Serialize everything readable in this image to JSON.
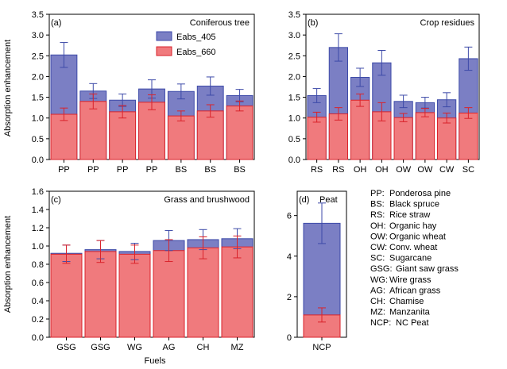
{
  "colors": {
    "eabs405_fill": "#7b7fc4",
    "eabs405_stroke": "#3d4aa8",
    "eabs660_fill": "#f07a7d",
    "eabs660_stroke": "#d9232b"
  },
  "ylabel": "Absorption enhancement",
  "xlabel": "Fuels",
  "legend": {
    "items": [
      "Eabs_405",
      "Eabs_660"
    ]
  },
  "abbreviations": [
    {
      "code": "PP:",
      "name": "Ponderosa pine"
    },
    {
      "code": "BS:",
      "name": "Black spruce"
    },
    {
      "code": "RS:",
      "name": "Rice straw"
    },
    {
      "code": "OH:",
      "name": "Organic hay"
    },
    {
      "code": "OW:",
      "name": "Organic wheat"
    },
    {
      "code": "CW:",
      "name": "Conv. wheat"
    },
    {
      "code": "SC:",
      "name": "Sugarcane"
    },
    {
      "code": "GSG:",
      "name": "Giant saw grass"
    },
    {
      "code": "WG:",
      "name": "Wire grass"
    },
    {
      "code": "AG:",
      "name": "African grass"
    },
    {
      "code": "CH:",
      "name": "Chamise"
    },
    {
      "code": "MZ:",
      "name": "Manzanita"
    },
    {
      "code": "NCP:",
      "name": "NC Peat"
    }
  ],
  "chart_data": [
    {
      "type": "bar",
      "panel": "(a)",
      "title": "Coniferous tree",
      "categories": [
        "PP",
        "PP",
        "PP",
        "PP",
        "BS",
        "BS",
        "BS"
      ],
      "ylim": [
        0,
        3.5
      ],
      "yticks": [
        0.0,
        0.5,
        1.0,
        1.5,
        2.0,
        2.5,
        3.0,
        3.5
      ],
      "ytick_labels": [
        "0.0",
        "0.5",
        "1.0",
        "1.5",
        "2.0",
        "2.5",
        "3.0",
        "3.5"
      ],
      "series": [
        {
          "name": "Eabs_405",
          "values": [
            2.52,
            1.65,
            1.43,
            1.7,
            1.64,
            1.77,
            1.54
          ],
          "errors": [
            0.3,
            0.18,
            0.15,
            0.22,
            0.18,
            0.22,
            0.15
          ]
        },
        {
          "name": "Eabs_660",
          "values": [
            1.09,
            1.4,
            1.15,
            1.38,
            1.05,
            1.17,
            1.29
          ],
          "errors": [
            0.15,
            0.18,
            0.15,
            0.18,
            0.12,
            0.15,
            0.12
          ]
        }
      ]
    },
    {
      "type": "bar",
      "panel": "(b)",
      "title": "Crop residues",
      "categories": [
        "RS",
        "RS",
        "OH",
        "OH",
        "OW",
        "OW",
        "CW",
        "SC"
      ],
      "ylim": [
        0,
        3.5
      ],
      "yticks": [
        0.0,
        0.5,
        1.0,
        1.5,
        2.0,
        2.5,
        3.0,
        3.5
      ],
      "ytick_labels": [
        "0.0",
        "0.5",
        "1.0",
        "1.5",
        "2.0",
        "2.5",
        "3.0",
        "3.5"
      ],
      "series": [
        {
          "name": "Eabs_405",
          "values": [
            1.54,
            2.7,
            1.98,
            2.33,
            1.4,
            1.37,
            1.44,
            2.43
          ],
          "errors": [
            0.17,
            0.33,
            0.22,
            0.3,
            0.15,
            0.13,
            0.17,
            0.28
          ]
        },
        {
          "name": "Eabs_660",
          "values": [
            1.02,
            1.1,
            1.43,
            1.15,
            1.01,
            1.13,
            1.0,
            1.12
          ],
          "errors": [
            0.12,
            0.15,
            0.15,
            0.22,
            0.1,
            0.1,
            0.12,
            0.13
          ]
        }
      ]
    },
    {
      "type": "bar",
      "panel": "(c)",
      "title": "Grass and brushwood",
      "categories": [
        "GSG",
        "GSG",
        "WG",
        "AG",
        "CH",
        "MZ"
      ],
      "ylim": [
        0,
        1.6
      ],
      "yticks": [
        0.0,
        0.2,
        0.4,
        0.6,
        0.8,
        1.0,
        1.2,
        1.4,
        1.6
      ],
      "ytick_labels": [
        "0.0",
        "0.2",
        "0.4",
        "0.6",
        "0.8",
        "1.0",
        "1.2",
        "1.4",
        "1.6"
      ],
      "series": [
        {
          "name": "Eabs_405",
          "values": [
            0.92,
            0.96,
            0.94,
            1.06,
            1.07,
            1.08
          ],
          "errors": [
            0.09,
            0.1,
            0.09,
            0.11,
            0.11,
            0.11
          ]
        },
        {
          "name": "Eabs_660",
          "values": [
            0.91,
            0.94,
            0.91,
            0.95,
            0.98,
            0.99
          ],
          "errors": [
            0.1,
            0.12,
            0.1,
            0.12,
            0.12,
            0.12
          ]
        }
      ]
    },
    {
      "type": "bar",
      "panel": "(d)",
      "title": "Peat",
      "categories": [
        "NCP"
      ],
      "ylim": [
        0,
        7.2
      ],
      "yticks": [
        0,
        2,
        4,
        6
      ],
      "ytick_labels": [
        "0",
        "2",
        "4",
        "6"
      ],
      "series": [
        {
          "name": "Eabs_405",
          "values": [
            5.62
          ],
          "errors": [
            1.0
          ]
        },
        {
          "name": "Eabs_660",
          "values": [
            1.1
          ],
          "errors": [
            0.35
          ]
        }
      ]
    }
  ]
}
